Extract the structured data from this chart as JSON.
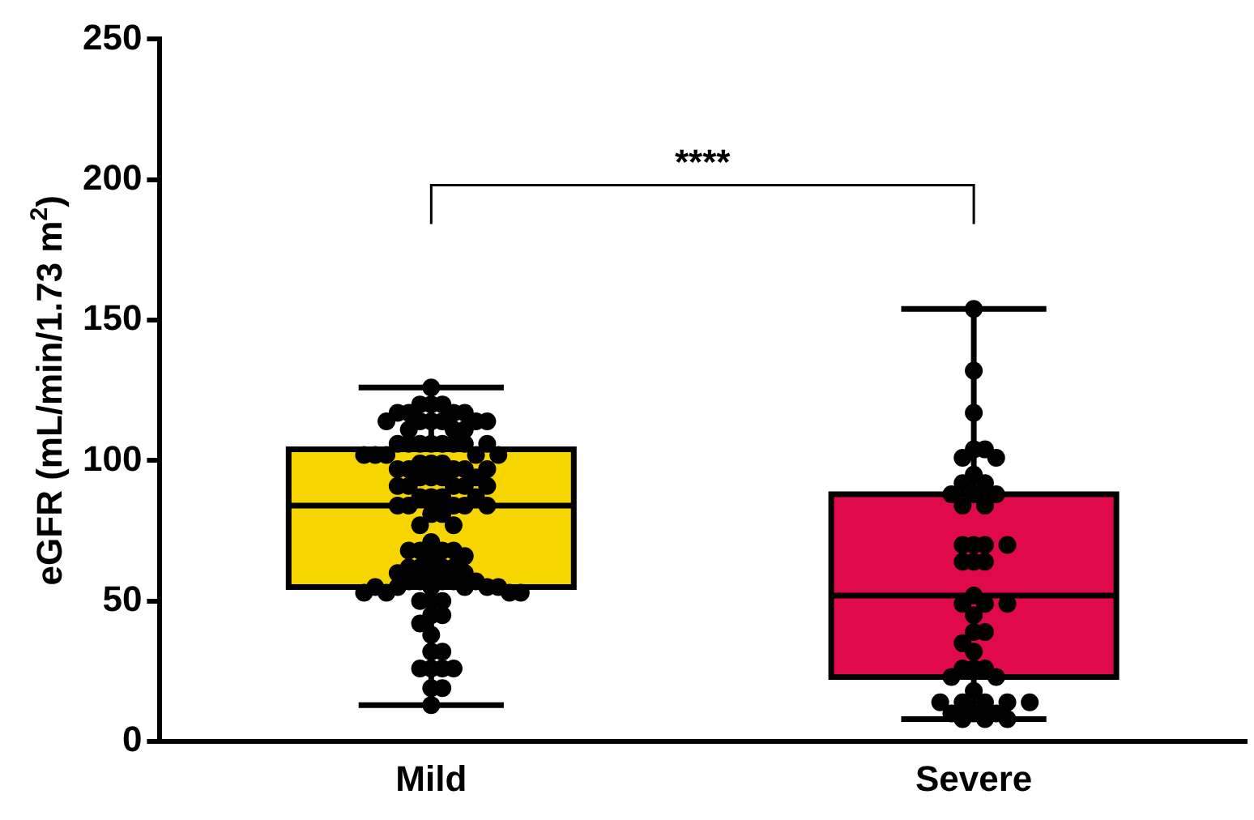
{
  "chart_data": {
    "type": "box",
    "ylabel": "eGFR (mL/min/1.73 m$^{2}$)",
    "categories": [
      "Mild",
      "Severe"
    ],
    "colors": [
      "#f7d600",
      "#e0094b"
    ],
    "boxes": [
      {
        "low": 13,
        "q1": 55,
        "median": 84,
        "q3": 104,
        "high": 126
      },
      {
        "low": 8,
        "q1": 23,
        "median": 52,
        "q3": 88,
        "high": 154
      }
    ],
    "series": [
      {
        "type": "scatter",
        "color": "#000000",
        "x": [
          "Mild",
          "Mild",
          "Mild",
          "Mild",
          "Mild",
          "Mild",
          "Mild",
          "Mild",
          "Mild",
          "Mild",
          "Mild",
          "Mild",
          "Mild",
          "Mild",
          "Mild",
          "Mild",
          "Mild",
          "Mild",
          "Mild",
          "Mild",
          "Mild",
          "Mild",
          "Mild",
          "Mild",
          "Mild",
          "Mild",
          "Mild",
          "Mild",
          "Mild",
          "Mild",
          "Mild",
          "Mild",
          "Mild",
          "Mild",
          "Mild",
          "Mild",
          "Mild",
          "Mild",
          "Mild",
          "Mild",
          "Mild",
          "Mild",
          "Mild",
          "Mild",
          "Mild",
          "Mild",
          "Mild",
          "Mild",
          "Mild",
          "Mild",
          "Mild",
          "Mild",
          "Mild",
          "Mild",
          "Mild",
          "Mild",
          "Mild",
          "Mild",
          "Mild",
          "Mild",
          "Mild",
          "Mild",
          "Mild",
          "Mild",
          "Mild",
          "Mild",
          "Mild",
          "Mild",
          "Mild",
          "Mild",
          "Mild",
          "Mild",
          "Mild",
          "Mild",
          "Mild",
          "Mild",
          "Mild",
          "Mild",
          "Mild",
          "Mild",
          "Mild",
          "Mild",
          "Mild",
          "Mild",
          "Mild",
          "Mild",
          "Mild",
          "Mild",
          "Mild",
          "Mild",
          "Mild",
          "Mild",
          "Mild",
          "Mild",
          "Mild",
          "Mild",
          "Mild",
          "Mild",
          "Mild",
          "Mild",
          "Mild",
          "Mild",
          "Mild",
          "Mild",
          "Mild",
          "Severe",
          "Severe",
          "Severe",
          "Severe",
          "Severe",
          "Severe",
          "Severe",
          "Severe",
          "Severe",
          "Severe",
          "Severe",
          "Severe",
          "Severe",
          "Severe",
          "Severe",
          "Severe",
          "Severe",
          "Severe",
          "Severe",
          "Severe",
          "Severe",
          "Severe",
          "Severe",
          "Severe",
          "Severe",
          "Severe",
          "Severe",
          "Severe",
          "Severe",
          "Severe",
          "Severe",
          "Severe",
          "Severe",
          "Severe",
          "Severe",
          "Severe",
          "Severe",
          "Severe",
          "Severe",
          "Severe",
          "Severe",
          "Severe",
          "Severe",
          "Severe",
          "Severe",
          "Severe",
          "Severe",
          "Severe"
        ],
        "values": [
          126,
          120,
          120,
          120,
          117,
          117,
          117,
          117,
          114,
          114,
          114,
          114,
          114,
          114,
          111,
          111,
          111,
          106,
          106,
          106,
          106,
          106,
          106,
          106,
          106,
          102,
          102,
          102,
          102,
          102,
          99,
          99,
          99,
          97,
          97,
          97,
          97,
          97,
          94,
          94,
          94,
          94,
          91,
          91,
          91,
          91,
          91,
          87,
          87,
          87,
          87,
          84,
          84,
          84,
          84,
          84,
          81,
          81,
          77,
          77,
          71,
          68,
          68,
          68,
          68,
          66,
          66,
          62,
          62,
          62,
          62,
          60,
          60,
          60,
          57,
          57,
          57,
          57,
          57,
          55,
          55,
          55,
          55,
          55,
          55,
          53,
          53,
          53,
          53,
          50,
          50,
          50,
          45,
          45,
          42,
          38,
          32,
          32,
          26,
          26,
          26,
          26,
          19,
          19,
          13,
          154,
          132,
          117,
          104,
          104,
          101,
          101,
          95,
          92,
          92,
          88,
          88,
          88,
          84,
          84,
          70,
          70,
          70,
          70,
          64,
          64,
          64,
          52,
          49,
          49,
          49,
          45,
          39,
          39,
          35,
          32,
          26,
          26,
          26,
          23,
          23,
          18,
          14,
          14,
          14,
          14,
          14,
          10,
          10,
          10,
          8,
          8,
          8
        ]
      }
    ],
    "ylim": [
      0,
      250
    ],
    "yticks": [
      0,
      50,
      100,
      150,
      200,
      250
    ],
    "annotations": [
      "****"
    ],
    "grid": false,
    "legend": false,
    "marker": "circle"
  }
}
